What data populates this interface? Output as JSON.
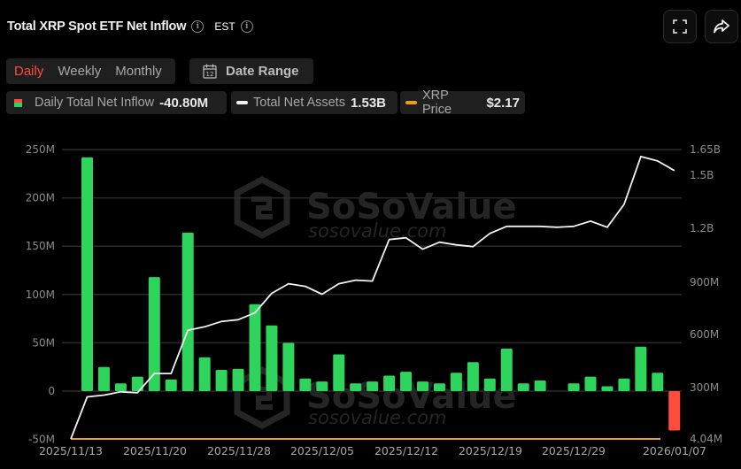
{
  "header": {
    "title": "Total XRP Spot ETF Net Inflow",
    "timezone": "EST",
    "fullscreen_icon": "fullscreen-icon",
    "share_icon": "share-icon"
  },
  "controls": {
    "period_tabs": [
      {
        "label": "Daily",
        "active": true
      },
      {
        "label": "Weekly",
        "active": false
      },
      {
        "label": "Monthly",
        "active": false
      }
    ],
    "date_range_label": "Date Range",
    "date_range_icon": "calendar-icon",
    "calendar_day": "12"
  },
  "legend": [
    {
      "label": "Daily Total Net Inflow",
      "value": "-40.80M",
      "swatch": "bar",
      "colors": [
        "#ff4d3d",
        "#2fd45c"
      ]
    },
    {
      "label": "Total Net Assets",
      "value": "1.53B",
      "swatch": "line",
      "color": "#f2f2f2"
    },
    {
      "label": "XRP Price",
      "value": "$2.17",
      "swatch": "line",
      "color": "#e8a21a"
    }
  ],
  "watermark": {
    "brand": "SoSoValue",
    "url": "sosovalue.com"
  },
  "colors": {
    "positive": "#2fd45c",
    "negative": "#ff4d3d",
    "assets_line": "#f2f2f2",
    "price_line": "#e8a21a",
    "grid": "#2b2b2b",
    "active_tab": "#ff4e38"
  },
  "chart_data": {
    "type": "bar",
    "title": "Total XRP Spot ETF Net Inflow",
    "xlabel": "",
    "ylabel": "Daily Total Net Inflow",
    "ylim": [
      -50000000,
      250000000
    ],
    "y_ticks": [
      "250M",
      "200M",
      "150M",
      "100M",
      "50M",
      "0",
      "-50M"
    ],
    "y2_ticks": [
      "1.65B",
      "1.5B",
      "1.2B",
      "900M",
      "600M",
      "300M",
      "4.04M"
    ],
    "y2lim": [
      4040000,
      1650000000
    ],
    "x_tick_labels": [
      "2025/11/13",
      "2025/11/20",
      "2025/11/28",
      "2025/12/05",
      "2025/12/12",
      "2025/12/19",
      "2025/12/29",
      "2026/01/07"
    ],
    "grid": true,
    "legend_position": "top",
    "series": [
      {
        "name": "Daily Total Net Inflow",
        "type": "bar",
        "unit": "M",
        "values": [
          242,
          25,
          8,
          15,
          118,
          12,
          164,
          35,
          22,
          23,
          90,
          68,
          50,
          13,
          10,
          38,
          8,
          10,
          16,
          20,
          10,
          8,
          19,
          30,
          13,
          44,
          8,
          11,
          0,
          8,
          15,
          5,
          13,
          46,
          19,
          -40.8
        ]
      },
      {
        "name": "Total Net Assets",
        "type": "line",
        "axis": "right",
        "unit": "M",
        "values": [
          4,
          243,
          253,
          272,
          267,
          376,
          376,
          622,
          642,
          672,
          682,
          722,
          832,
          887,
          872,
          827,
          887,
          907,
          902,
          1138,
          1148,
          1083,
          1123,
          1108,
          1098,
          1173,
          1213,
          1213,
          1213,
          1208,
          1213,
          1243,
          1208,
          1338,
          1610,
          1585,
          1530
        ]
      },
      {
        "name": "XRP Price",
        "type": "line",
        "axis": "hidden",
        "note": "flat near bottom of chart",
        "latest": "$2.17"
      }
    ]
  }
}
